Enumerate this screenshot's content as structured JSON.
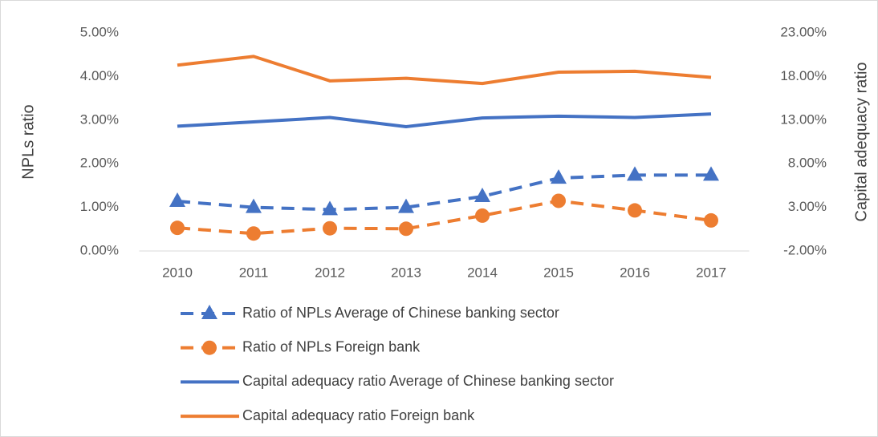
{
  "chart_data": {
    "type": "line",
    "y_label": "NPLs ratio",
    "y2_label": "Capital adequacy ratio",
    "categories": [
      "2010",
      "2011",
      "2012",
      "2013",
      "2014",
      "2015",
      "2016",
      "2017"
    ],
    "ylim": [
      0,
      5
    ],
    "yticks": [
      {
        "value": 0,
        "label": "0.00%"
      },
      {
        "value": 1,
        "label": "1.00%"
      },
      {
        "value": 2,
        "label": "2.00%"
      },
      {
        "value": 3,
        "label": "3.00%"
      },
      {
        "value": 4,
        "label": "4.00%"
      },
      {
        "value": 5,
        "label": "5.00%"
      }
    ],
    "y2lim": [
      -2,
      23
    ],
    "y2ticks": [
      {
        "value": -2,
        "label": "-2.00%"
      },
      {
        "value": 3,
        "label": "3.00%"
      },
      {
        "value": 8,
        "label": "8.00%"
      },
      {
        "value": 13,
        "label": "13.00%"
      },
      {
        "value": 18,
        "label": "18.00%"
      },
      {
        "value": 23,
        "label": "23.00%"
      }
    ],
    "grid": false,
    "legend": "bottom",
    "series": [
      {
        "name": "Ratio of NPLs Average of Chinese banking sector",
        "color": "#4472c4",
        "dashed": true,
        "marker": "triangle",
        "values": [
          1.14,
          1.0,
          0.95,
          1.0,
          1.25,
          1.67,
          1.74,
          1.74
        ]
      },
      {
        "name": "Ratio of NPLs Foreign bank",
        "color": "#ed7d31",
        "dashed": true,
        "marker": "circle",
        "values": [
          0.53,
          0.4,
          0.52,
          0.51,
          0.81,
          1.15,
          0.93,
          0.7
        ]
      },
      {
        "name": "Capital adequacy ratio Average of Chinese banking sector",
        "color": "#4472c4",
        "dashed": false,
        "axis": "y2",
        "values": [
          12.3,
          12.8,
          13.3,
          12.25,
          13.25,
          13.45,
          13.3,
          13.7
        ]
      },
      {
        "name": "Capital adequacy ratio Foreign bank",
        "color": "#ed7d31",
        "dashed": false,
        "axis": "y2",
        "values": [
          19.3,
          20.3,
          17.5,
          17.8,
          17.2,
          18.5,
          18.6,
          17.9
        ]
      }
    ]
  }
}
